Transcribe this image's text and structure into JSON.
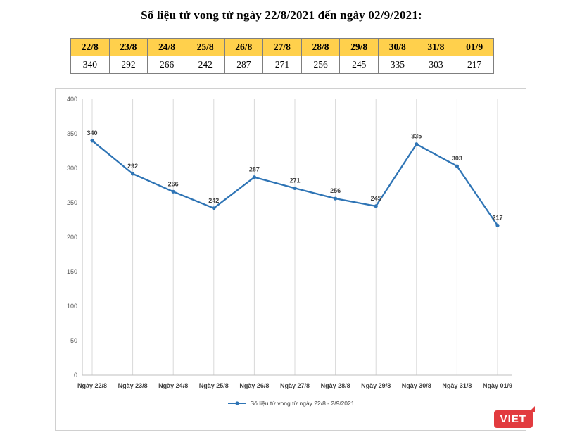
{
  "page": {
    "title": "Số liệu tử vong từ ngày 22/8/2021 đến ngày 02/9/2021:"
  },
  "table": {
    "header_bg": "#FFD04C",
    "headers": [
      "22/8",
      "23/8",
      "24/8",
      "25/8",
      "26/8",
      "27/8",
      "28/8",
      "29/8",
      "30/8",
      "31/8",
      "01/9"
    ],
    "values": [
      "340",
      "292",
      "266",
      "242",
      "287",
      "271",
      "256",
      "245",
      "335",
      "303",
      "217"
    ]
  },
  "chart_data": {
    "type": "line",
    "title": "",
    "categories": [
      "Ngày 22/8",
      "Ngày 23/8",
      "Ngày 24/8",
      "Ngày 25/8",
      "Ngày 26/8",
      "Ngày 27/8",
      "Ngày 28/8",
      "Ngày 29/8",
      "Ngày 30/8",
      "Ngày 31/8",
      "Ngày 01/9"
    ],
    "values": [
      340,
      292,
      266,
      242,
      287,
      271,
      256,
      245,
      335,
      303,
      217
    ],
    "legend": "Số liệu tử vong từ ngày 22/8 - 2/9/2021",
    "xlabel": "",
    "ylabel": "",
    "ylim": [
      0,
      400
    ],
    "ytick_step": 50,
    "grid": "vertical-only",
    "legend_position": "bottom",
    "line_color": "#2E74B5",
    "label_color": "#404040",
    "axis_color": "#bfbfbf",
    "grid_color": "#d9d9d9",
    "tick_label_color": "#595959"
  },
  "logo": {
    "text": "VIET",
    "color": "#e23b3f"
  }
}
